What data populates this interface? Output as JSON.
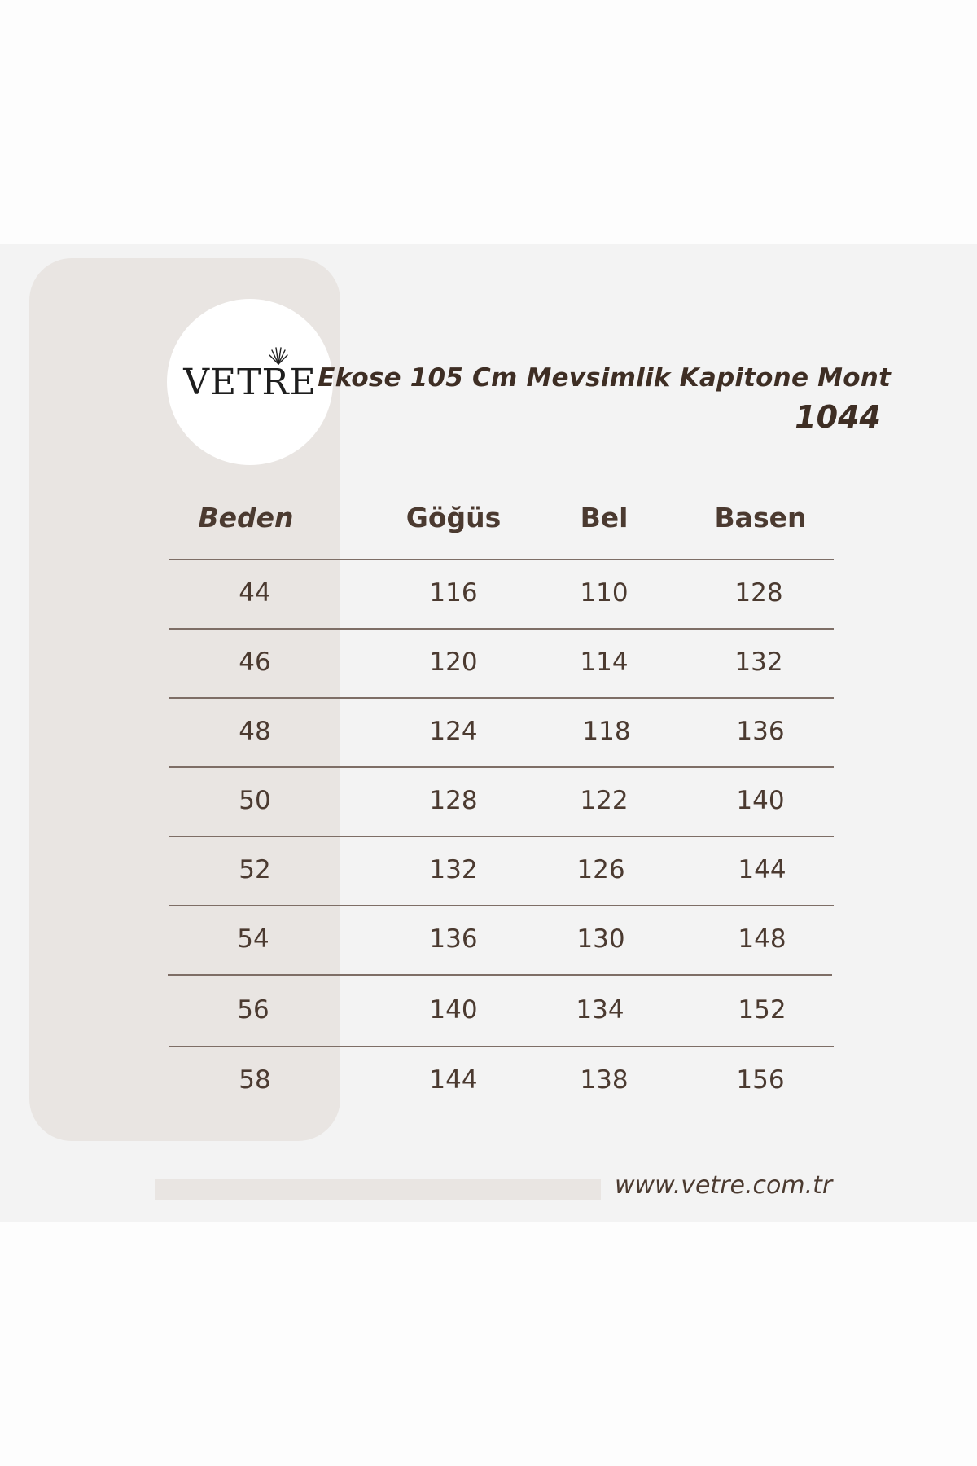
{
  "brand": {
    "logo_text": "VETRE",
    "website": "www.vetre.com.tr"
  },
  "product": {
    "title": "Ekose 105 Cm Mevsimlik Kapitone Mont",
    "code": "1044"
  },
  "colors": {
    "panel_background": "#f3f3f3",
    "side_column": "#e9e5e2",
    "text": "#4b3a30",
    "divider": "#7e6e66"
  },
  "size_table": {
    "headers": {
      "size": "Beden",
      "chest": "Göğüs",
      "waist": "Bel",
      "hip": "Basen"
    },
    "rows": [
      {
        "size": "44",
        "chest": "116",
        "waist": "110",
        "hip": "128"
      },
      {
        "size": "46",
        "chest": "120",
        "waist": "114",
        "hip": "132"
      },
      {
        "size": "48",
        "chest": "124",
        "waist": "118",
        "hip": "136"
      },
      {
        "size": "50",
        "chest": "128",
        "waist": "122",
        "hip": "140"
      },
      {
        "size": "52",
        "chest": "132",
        "waist": "126",
        "hip": "144"
      },
      {
        "size": "54",
        "chest": "136",
        "waist": "130",
        "hip": "148"
      },
      {
        "size": "56",
        "chest": "140",
        "waist": "134",
        "hip": "152"
      },
      {
        "size": "58",
        "chest": "144",
        "waist": "138",
        "hip": "156"
      }
    ]
  }
}
